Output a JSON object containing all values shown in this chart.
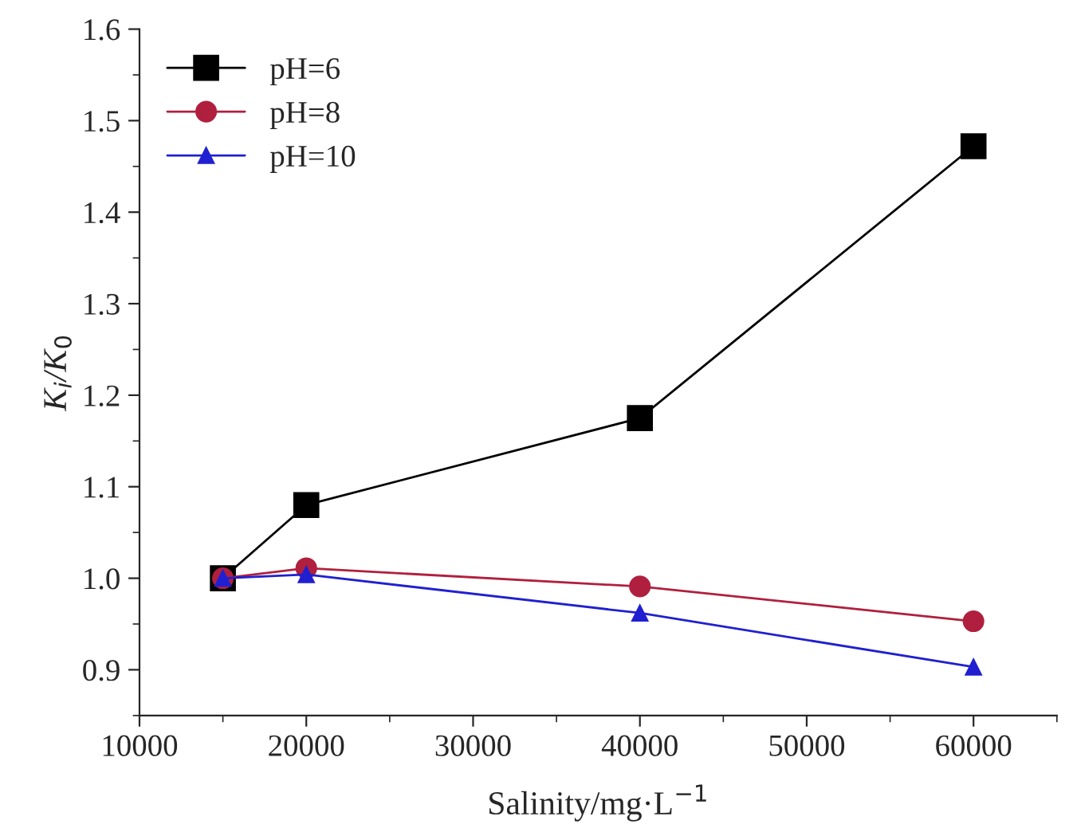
{
  "chart_data": {
    "type": "line",
    "xlabel": "Salinity/mg·L$^{−1}$",
    "ylabel": "K$_{i}$/K$_{0}$",
    "x": [
      15000,
      20000,
      40000,
      60000
    ],
    "series": [
      {
        "name": "pH=6",
        "color": "#000000",
        "marker": "square",
        "values": [
          1.0,
          1.08,
          1.175,
          1.472
        ]
      },
      {
        "name": "pH=8",
        "color": "#b0203e",
        "marker": "circle",
        "values": [
          1.0,
          1.011,
          0.991,
          0.953
        ]
      },
      {
        "name": "pH=10",
        "color": "#2020d0",
        "marker": "triangle",
        "values": [
          1.0,
          1.004,
          0.962,
          0.903
        ]
      }
    ],
    "xlim": [
      10000,
      65000
    ],
    "xticks": [
      10000,
      20000,
      30000,
      40000,
      50000,
      60000
    ],
    "ylim": [
      0.85,
      1.6
    ],
    "yticks": [
      0.9,
      {
        "value": 1.0,
        "label": "1.0"
      },
      1.1,
      1.2,
      1.3,
      1.4,
      1.5,
      1.6
    ],
    "grid": false,
    "legend": "top left",
    "line_style": "solid"
  }
}
